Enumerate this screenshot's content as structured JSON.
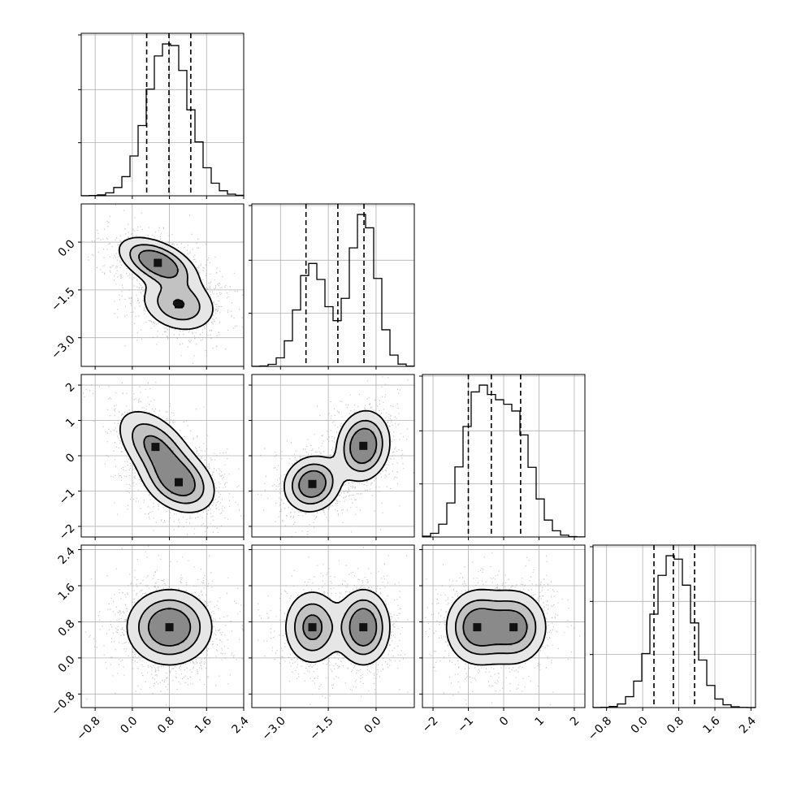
{
  "chart_data": {
    "type": "corner",
    "n_params": 4,
    "grid": true,
    "ticks": [
      {
        "values": [
          -0.8,
          0.0,
          0.8,
          1.6,
          2.4
        ],
        "labels": [
          "−0.8",
          "0.0",
          "0.8",
          "1.6",
          "2.4"
        ],
        "range": [
          -1.1,
          2.4
        ]
      },
      {
        "values": [
          -3.0,
          -1.5,
          0.0
        ],
        "labels": [
          "−3.0",
          "−1.5",
          "0.0"
        ],
        "range": [
          -3.9,
          1.2
        ]
      },
      {
        "values": [
          -2,
          -1,
          0,
          1,
          2
        ],
        "labels": [
          "−2",
          "−1",
          "0",
          "1",
          "2"
        ],
        "range": [
          -2.3,
          2.3
        ]
      },
      {
        "values": [
          -0.8,
          0.0,
          0.8,
          1.6,
          2.4
        ],
        "labels": [
          "−0.8",
          "0.0",
          "0.8",
          "1.6",
          "2.4"
        ],
        "range": [
          -1.1,
          2.5
        ]
      }
    ],
    "histograms": [
      {
        "quantiles": [
          0.31,
          0.79,
          1.26
        ],
        "mix": [
          [
            1.0,
            0.78,
            0.45
          ]
        ]
      },
      {
        "quantiles": [
          -2.2,
          -1.2,
          -0.38
        ],
        "mix": [
          [
            0.42,
            -2.0,
            0.45
          ],
          [
            0.58,
            -0.4,
            0.42
          ]
        ]
      },
      {
        "quantiles": [
          -1.0,
          -0.35,
          0.48
        ],
        "mix": [
          [
            0.5,
            -0.75,
            0.45
          ],
          [
            0.5,
            0.28,
            0.5
          ]
        ]
      },
      {
        "quantiles": [
          0.25,
          0.68,
          1.15
        ],
        "mix": [
          [
            1.0,
            0.68,
            0.42
          ]
        ]
      }
    ],
    "pairs": [
      {
        "row": 1,
        "col": 0,
        "blobs": [
          {
            "mx": 0.55,
            "my": -0.65,
            "sx": 0.42,
            "sy": 0.4,
            "rho": -0.5,
            "w": 0.55
          },
          {
            "mx": 1.0,
            "my": -1.95,
            "sx": 0.42,
            "sy": 0.45,
            "rho": -0.2,
            "w": 0.45
          }
        ]
      },
      {
        "row": 2,
        "col": 0,
        "blobs": [
          {
            "mx": 0.5,
            "my": 0.25,
            "sx": 0.42,
            "sy": 0.55,
            "rho": -0.5,
            "w": 0.5
          },
          {
            "mx": 1.0,
            "my": -0.75,
            "sx": 0.4,
            "sy": 0.45,
            "rho": -0.3,
            "w": 0.5
          }
        ]
      },
      {
        "row": 2,
        "col": 1,
        "blobs": [
          {
            "mx": -2.0,
            "my": -0.8,
            "sx": 0.45,
            "sy": 0.4,
            "rho": 0.1,
            "w": 0.45
          },
          {
            "mx": -0.4,
            "my": 0.28,
            "sx": 0.42,
            "sy": 0.5,
            "rho": 0.1,
            "w": 0.55
          }
        ]
      },
      {
        "row": 3,
        "col": 0,
        "blobs": [
          {
            "mx": 0.8,
            "my": 0.68,
            "sx": 0.46,
            "sy": 0.42,
            "rho": 0.0,
            "w": 1.0
          }
        ]
      },
      {
        "row": 3,
        "col": 1,
        "blobs": [
          {
            "mx": -2.0,
            "my": 0.68,
            "sx": 0.45,
            "sy": 0.42,
            "rho": 0.0,
            "w": 0.45
          },
          {
            "mx": -0.4,
            "my": 0.68,
            "sx": 0.42,
            "sy": 0.42,
            "rho": 0.0,
            "w": 0.55
          }
        ]
      },
      {
        "row": 3,
        "col": 2,
        "blobs": [
          {
            "mx": -0.75,
            "my": 0.68,
            "sx": 0.45,
            "sy": 0.42,
            "rho": 0.0,
            "w": 0.5
          },
          {
            "mx": 0.28,
            "my": 0.68,
            "sx": 0.48,
            "sy": 0.42,
            "rho": 0.0,
            "w": 0.5
          }
        ]
      }
    ]
  }
}
